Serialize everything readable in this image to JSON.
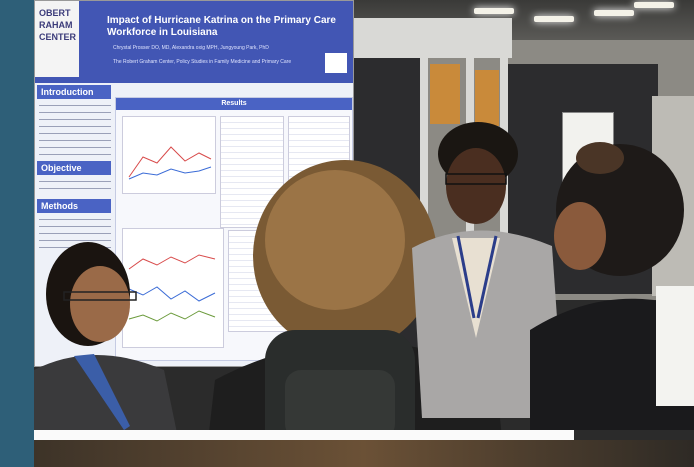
{
  "poster": {
    "logo_lines": [
      "OBERT",
      "RAHAM",
      "CENTER"
    ],
    "title": "Impact of Hurricane Katrina on the Primary Care Workforce in Louisiana",
    "authors": "Chrystal Prosser DO, MD, Alexandra oxig MPH, Jungyoung Park, PhD",
    "affiliation": "The Robert Graham Center, Policy Studies in Family Medicine and Primary Care",
    "sections": {
      "introduction": "Introduction",
      "objective": "Objective",
      "methods": "Methods",
      "results": "Results"
    }
  },
  "colors": {
    "poster_header": "#4256b4",
    "section_head": "#4a63c4",
    "left_bar": "#2e5f78"
  }
}
